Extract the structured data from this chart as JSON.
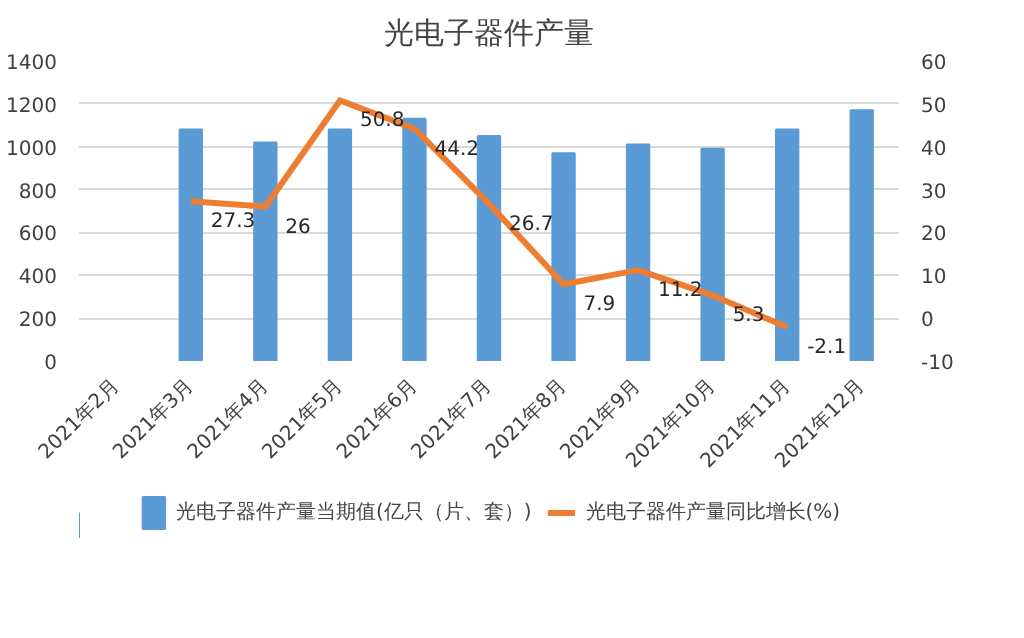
{
  "chart_data": {
    "type": "bar",
    "title": "光电子器件产量",
    "categories": [
      "2021年2月",
      "2021年3月",
      "2021年4月",
      "2021年5月",
      "2021年6月",
      "2021年7月",
      "2021年8月",
      "2021年9月",
      "2021年10月",
      "2021年11月",
      "2021年12月"
    ],
    "series": [
      {
        "name": "光电子器件产量当期值(亿只（片、套）)",
        "color": "#5b9bd5",
        "values": [
          null,
          1080,
          1020,
          1080,
          1130,
          1050,
          970,
          1010,
          990,
          1080,
          1170
        ]
      },
      {
        "name": "光电子器件产量同比增长(%)",
        "type": "line",
        "axis": "y2",
        "color": "#ed7d31",
        "values": [
          null,
          27.3,
          26,
          50.8,
          44.2,
          26.7,
          7.9,
          11.2,
          5.3,
          -2.1,
          null
        ],
        "value_labels": [
          null,
          "27.3",
          "26",
          "50.8",
          "44.2",
          "26.7",
          "7.9",
          "11.2",
          "5.3",
          "-2.1",
          null
        ]
      }
    ],
    "ylim": [
      0,
      1400
    ],
    "yticks": [
      0,
      200,
      400,
      600,
      800,
      1000,
      1200,
      1400
    ],
    "y2lim": [
      -10,
      60
    ],
    "y2ticks": [
      -10,
      0,
      10,
      20,
      30,
      40,
      50,
      60
    ],
    "grid": "y",
    "legend": "bottom",
    "marker": "none",
    "line_style": "solid"
  }
}
